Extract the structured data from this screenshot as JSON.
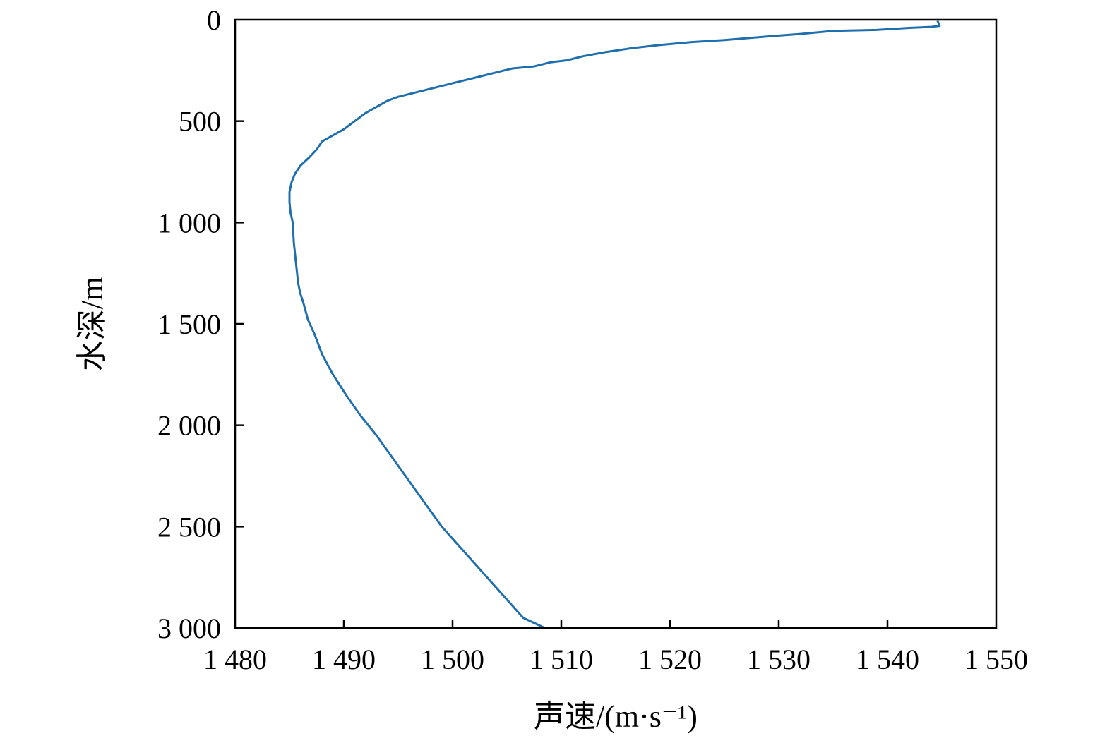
{
  "chart_data": {
    "type": "line",
    "xlabel": "声速/(m·s⁻¹)",
    "ylabel": "水深/m",
    "xlim": [
      1480,
      1550
    ],
    "ylim": [
      0,
      3000
    ],
    "y_inverted": true,
    "grid": false,
    "line_color": "#1f6fae",
    "x_ticks": [
      1480,
      1490,
      1500,
      1510,
      1520,
      1530,
      1540,
      1550
    ],
    "x_tick_labels": [
      "1 480",
      "1 490",
      "1 500",
      "1 510",
      "1 520",
      "1 530",
      "1 540",
      "1 550"
    ],
    "y_ticks": [
      0,
      500,
      1000,
      1500,
      2000,
      2500,
      3000
    ],
    "y_tick_labels": [
      "0",
      "500",
      "1 000",
      "1 500",
      "2 000",
      "2 500",
      "3 000"
    ],
    "series": [
      {
        "x": [
          1544.6,
          1544.8,
          1544.0,
          1542.0,
          1539.0,
          1535.0,
          1532.0,
          1529.5,
          1525.0,
          1522.0,
          1519.0,
          1516.5,
          1514.0,
          1512.0,
          1510.5,
          1509.0,
          1507.5,
          1505.5,
          1504.0,
          1502.5,
          1501.0,
          1499.5,
          1498.0,
          1496.5,
          1495.0,
          1494.0,
          1493.0,
          1492.0,
          1491.0,
          1490.0,
          1489.0,
          1488.0,
          1487.5,
          1486.8,
          1486.0,
          1485.5,
          1485.2,
          1485.0,
          1485.0,
          1485.1,
          1485.3,
          1485.4,
          1485.6,
          1485.8,
          1486.0,
          1486.3,
          1486.7,
          1487.3,
          1488.0,
          1489.0,
          1490.2,
          1491.5,
          1493.0,
          1495.0,
          1497.0,
          1499.0,
          1501.5,
          1504.0,
          1506.5,
          1508.5
        ],
        "y": [
          5,
          30,
          35,
          40,
          50,
          55,
          70,
          80,
          100,
          110,
          125,
          140,
          160,
          180,
          200,
          210,
          230,
          240,
          260,
          280,
          300,
          320,
          340,
          360,
          380,
          400,
          430,
          460,
          500,
          540,
          570,
          600,
          640,
          680,
          720,
          760,
          800,
          850,
          900,
          950,
          1000,
          1100,
          1200,
          1300,
          1350,
          1400,
          1480,
          1550,
          1650,
          1750,
          1850,
          1950,
          2050,
          2200,
          2350,
          2500,
          2650,
          2800,
          2950,
          3000
        ]
      }
    ]
  }
}
